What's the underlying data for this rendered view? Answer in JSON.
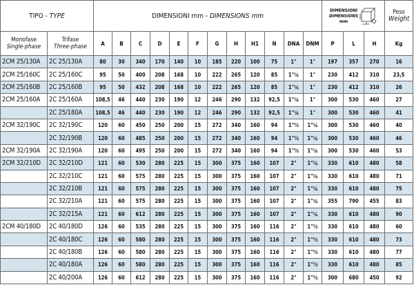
{
  "header": {
    "tipo": "TIPO - ",
    "type": "TYPE",
    "dimensioni": "DIMENSIONI mm - ",
    "dimensions": "DIMENSIONS mm",
    "pack_dimensioni": "DIMENSIONI",
    "pack_dimensions": "DIMENSIONS",
    "pack_unit": "mm",
    "pack_icon": "box-dimensions-icon",
    "peso": "Peso",
    "weight": "Weight",
    "mono": "Monofase",
    "mono_en": "Single-phase",
    "tri": "Trifase",
    "tri_en": "Three-phase",
    "columns": [
      "A",
      "B",
      "C",
      "D",
      "E",
      "F",
      "G",
      "H",
      "H1",
      "N",
      "DNA",
      "DNM",
      "P",
      "L",
      "H",
      "Kg"
    ]
  },
  "colors": {
    "row_shade": "#d5e3ed",
    "border": "#6a6a6a"
  },
  "rows": [
    {
      "mono": "2CM 25/130A",
      "tri": "2C 25/130A",
      "v": [
        "80",
        "30",
        "340",
        "170",
        "140",
        "10",
        "185",
        "220",
        "100",
        "75",
        "1\"",
        "1\"",
        "197",
        "357",
        "270",
        "16"
      ]
    },
    {
      "mono": "2CM 25/160C",
      "tri": "2C 25/160C",
      "v": [
        "95",
        "50",
        "400",
        "208",
        "168",
        "10",
        "222",
        "265",
        "120",
        "85",
        "1\"¼",
        "1\"",
        "230",
        "412",
        "310",
        "23,5"
      ]
    },
    {
      "mono": "2CM 25/160B",
      "tri": "2C 25/160B",
      "v": [
        "95",
        "50",
        "432",
        "208",
        "168",
        "10",
        "222",
        "265",
        "120",
        "85",
        "1\"¼",
        "1\"",
        "230",
        "412",
        "310",
        "26"
      ]
    },
    {
      "mono": "2CM 25/160A",
      "tri": "2C 25/160A",
      "v": [
        "108,5",
        "46",
        "440",
        "230",
        "190",
        "12",
        "246",
        "290",
        "132",
        "92,5",
        "1\"¼",
        "1\"",
        "300",
        "530",
        "460",
        "27"
      ]
    },
    {
      "mono": "",
      "tri": "2C 25/180A",
      "v": [
        "108,5",
        "46",
        "440",
        "230",
        "190",
        "12",
        "246",
        "290",
        "132",
        "92,5",
        "1\"¼",
        "1\"",
        "300",
        "530",
        "460",
        "41"
      ]
    },
    {
      "mono": "2CM 32/190C",
      "tri": "2C 32/190C",
      "v": [
        "120",
        "60",
        "450",
        "250",
        "200",
        "15",
        "272",
        "340",
        "160",
        "94",
        "1\"½",
        "1\"¼",
        "300",
        "530",
        "460",
        "40"
      ]
    },
    {
      "mono": "",
      "tri": "2C 32/190B",
      "v": [
        "120",
        "60",
        "485",
        "250",
        "200",
        "15",
        "272",
        "340",
        "160",
        "94",
        "1\"½",
        "1\"¼",
        "300",
        "530",
        "460",
        "46"
      ]
    },
    {
      "mono": "2CM 32/190A",
      "tri": "2C 32/190A",
      "v": [
        "120",
        "60",
        "495",
        "250",
        "200",
        "15",
        "272",
        "340",
        "160",
        "94",
        "1\"½",
        "1\"¼",
        "300",
        "530",
        "460",
        "53"
      ]
    },
    {
      "mono": "2CM 32/210D",
      "tri": "2C 32/210D",
      "v": [
        "121",
        "60",
        "530",
        "280",
        "225",
        "15",
        "300",
        "375",
        "160",
        "107",
        "2\"",
        "1\"¼",
        "330",
        "610",
        "480",
        "58"
      ]
    },
    {
      "mono": "",
      "tri": "2C 32/210C",
      "v": [
        "121",
        "60",
        "575",
        "280",
        "225",
        "15",
        "300",
        "375",
        "160",
        "107",
        "2\"",
        "1\"¼",
        "330",
        "610",
        "480",
        "71"
      ]
    },
    {
      "mono": "",
      "tri": "2C 32/210B",
      "v": [
        "121",
        "60",
        "575",
        "280",
        "225",
        "15",
        "300",
        "375",
        "160",
        "107",
        "2\"",
        "1\"¼",
        "330",
        "610",
        "480",
        "75"
      ]
    },
    {
      "mono": "",
      "tri": "2C 32/210A",
      "v": [
        "121",
        "60",
        "575",
        "280",
        "225",
        "15",
        "300",
        "375",
        "160",
        "107",
        "2\"",
        "1\"¼",
        "355",
        "790",
        "455",
        "83"
      ]
    },
    {
      "mono": "",
      "tri": "2C 32/215A",
      "v": [
        "121",
        "60",
        "612",
        "280",
        "225",
        "15",
        "300",
        "375",
        "160",
        "107",
        "2\"",
        "1\"¼",
        "330",
        "610",
        "480",
        "90"
      ]
    },
    {
      "mono": "2CM 40/180D",
      "tri": "2C 40/180D",
      "v": [
        "126",
        "60",
        "535",
        "280",
        "225",
        "15",
        "300",
        "375",
        "160",
        "116",
        "2\"",
        "1\"½",
        "330",
        "610",
        "480",
        "60"
      ]
    },
    {
      "mono": "",
      "tri": "2C 40/180C",
      "v": [
        "126",
        "60",
        "580",
        "280",
        "225",
        "15",
        "300",
        "375",
        "160",
        "116",
        "2\"",
        "1\"½",
        "330",
        "610",
        "480",
        "73"
      ]
    },
    {
      "mono": "",
      "tri": "2C 40/180B",
      "v": [
        "126",
        "60",
        "580",
        "280",
        "225",
        "15",
        "300",
        "375",
        "160",
        "116",
        "2\"",
        "1\"½",
        "330",
        "610",
        "480",
        "77"
      ]
    },
    {
      "mono": "",
      "tri": "2C 40/180A",
      "v": [
        "126",
        "60",
        "580",
        "280",
        "225",
        "15",
        "300",
        "375",
        "160",
        "116",
        "2\"",
        "1\"½",
        "330",
        "610",
        "480",
        "85"
      ]
    },
    {
      "mono": "",
      "tri": "2C 40/200A",
      "v": [
        "126",
        "60",
        "612",
        "280",
        "225",
        "15",
        "300",
        "375",
        "160",
        "116",
        "2\"",
        "1\"½",
        "300",
        "680",
        "450",
        "92"
      ]
    }
  ]
}
